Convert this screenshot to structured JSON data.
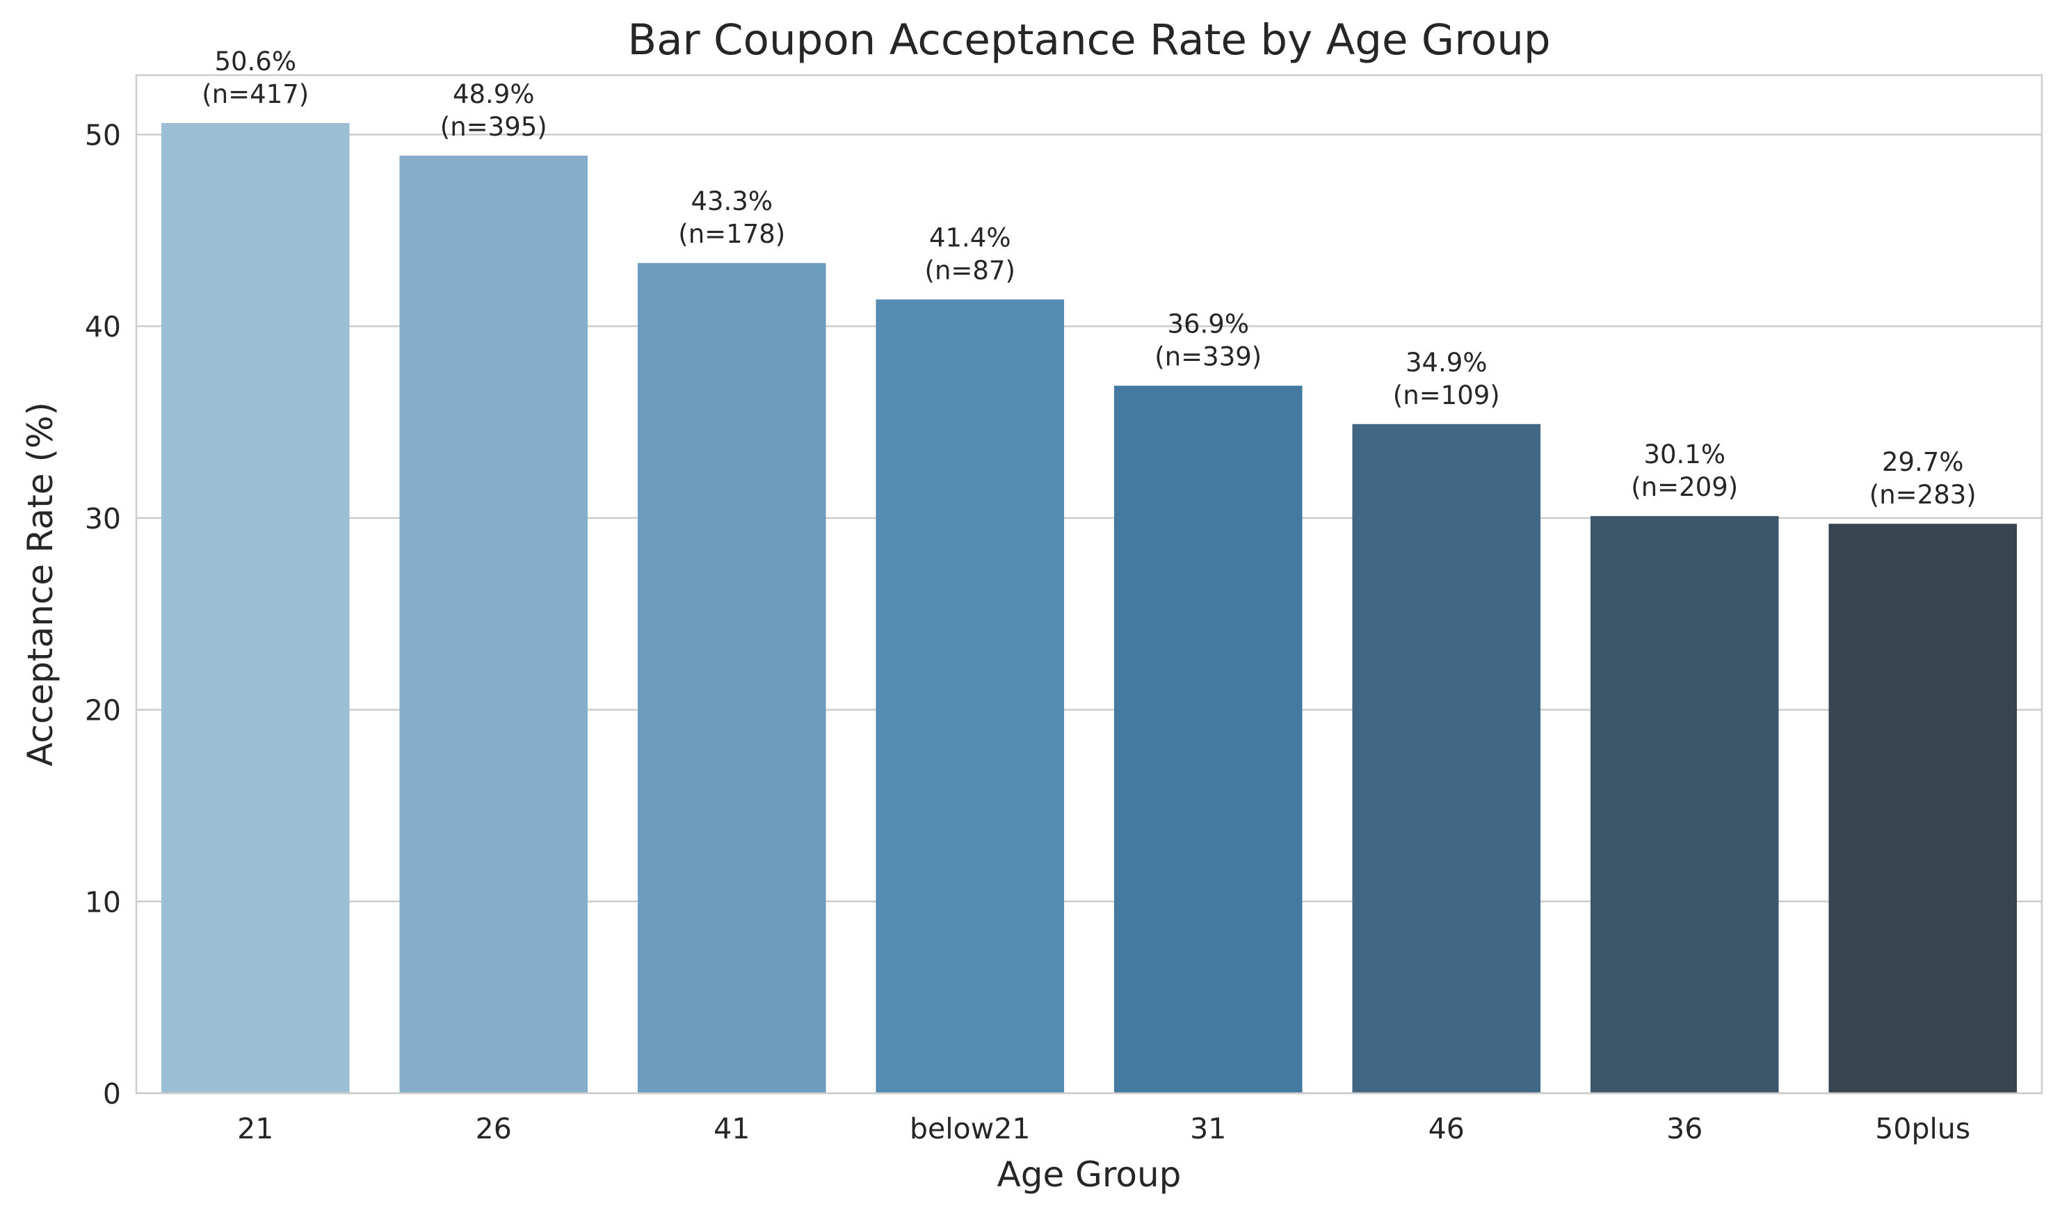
{
  "chart_data": {
    "type": "bar",
    "title": "Bar Coupon Acceptance Rate by Age Group",
    "xlabel": "Age Group",
    "ylabel": "Acceptance Rate (%)",
    "ylim": [
      0,
      53.1
    ],
    "yticks": [
      0,
      10,
      20,
      30,
      40,
      50
    ],
    "grid": true,
    "categories": [
      "21",
      "26",
      "41",
      "below21",
      "31",
      "46",
      "36",
      "50plus"
    ],
    "values": [
      50.6,
      48.9,
      43.3,
      41.4,
      36.9,
      34.9,
      30.1,
      29.7
    ],
    "counts": [
      417,
      395,
      178,
      87,
      339,
      109,
      209,
      283
    ],
    "value_labels": [
      "50.6%",
      "48.9%",
      "43.3%",
      "41.4%",
      "36.9%",
      "34.9%",
      "30.1%",
      "29.7%"
    ],
    "count_labels": [
      "(n=417)",
      "(n=395)",
      "(n=178)",
      "(n=87)",
      "(n=339)",
      "(n=109)",
      "(n=209)",
      "(n=283)"
    ],
    "colors": [
      "#9dbfd5",
      "#86adca",
      "#6c9dbe",
      "#558cb4",
      "#447a9f",
      "#426784",
      "#3c566a",
      "#36454f"
    ]
  }
}
